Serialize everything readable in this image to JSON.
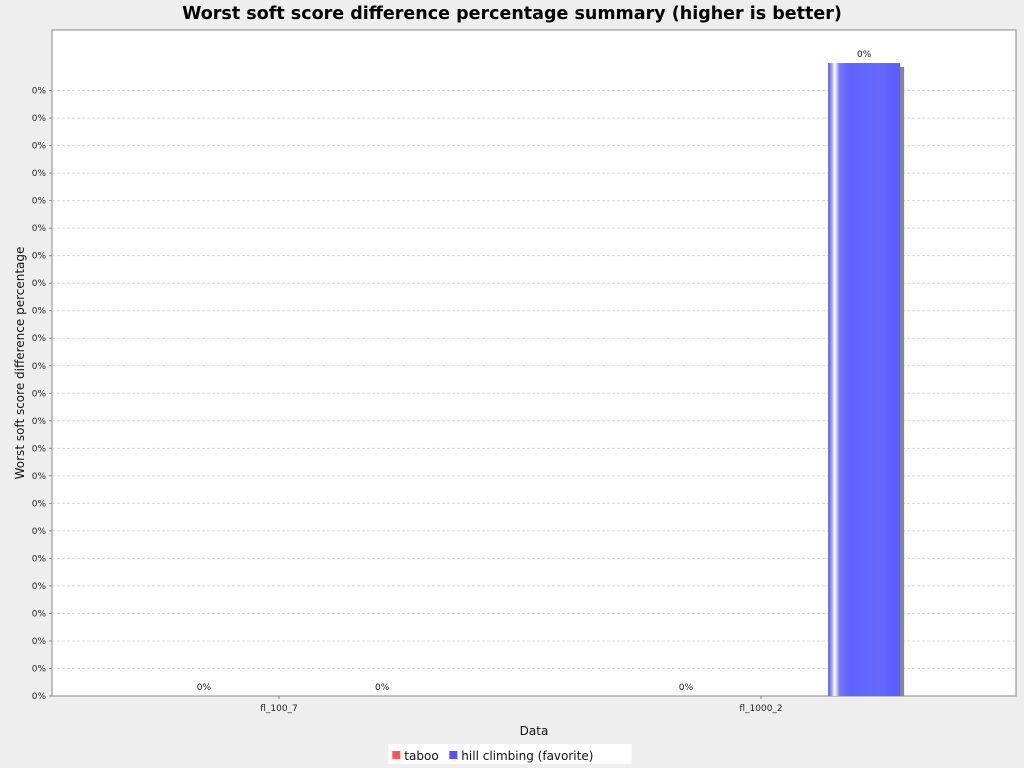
{
  "chart_data": {
    "type": "bar",
    "title": "Worst soft score difference percentage summary (higher is better)",
    "xlabel": "Data",
    "ylabel": "Worst soft score difference percentage",
    "categories": [
      "fl_100_7",
      "fl_1000_2"
    ],
    "series": [
      {
        "name": "taboo",
        "color": "#ff5555",
        "values": [
          0,
          0
        ],
        "labels": [
          "0%",
          "0%"
        ]
      },
      {
        "name": "hill climbing (favorite)",
        "color": "#5555ff",
        "values": [
          0,
          0.00023
        ],
        "labels": [
          "0%",
          "0%"
        ]
      }
    ],
    "ylim": [
      0,
      0.000242
    ],
    "yticks": [
      0,
      1e-05,
      2e-05,
      3e-05,
      4e-05,
      5e-05,
      6e-05,
      7e-05,
      8e-05,
      9e-05,
      0.0001,
      0.00011,
      0.00012,
      0.00013,
      0.00014,
      0.00015,
      0.00016,
      0.00017,
      0.00018,
      0.00019,
      0.0002,
      0.00021,
      0.00022
    ],
    "ytick_label": "0%",
    "grid": true,
    "legend": "bottom-center"
  }
}
